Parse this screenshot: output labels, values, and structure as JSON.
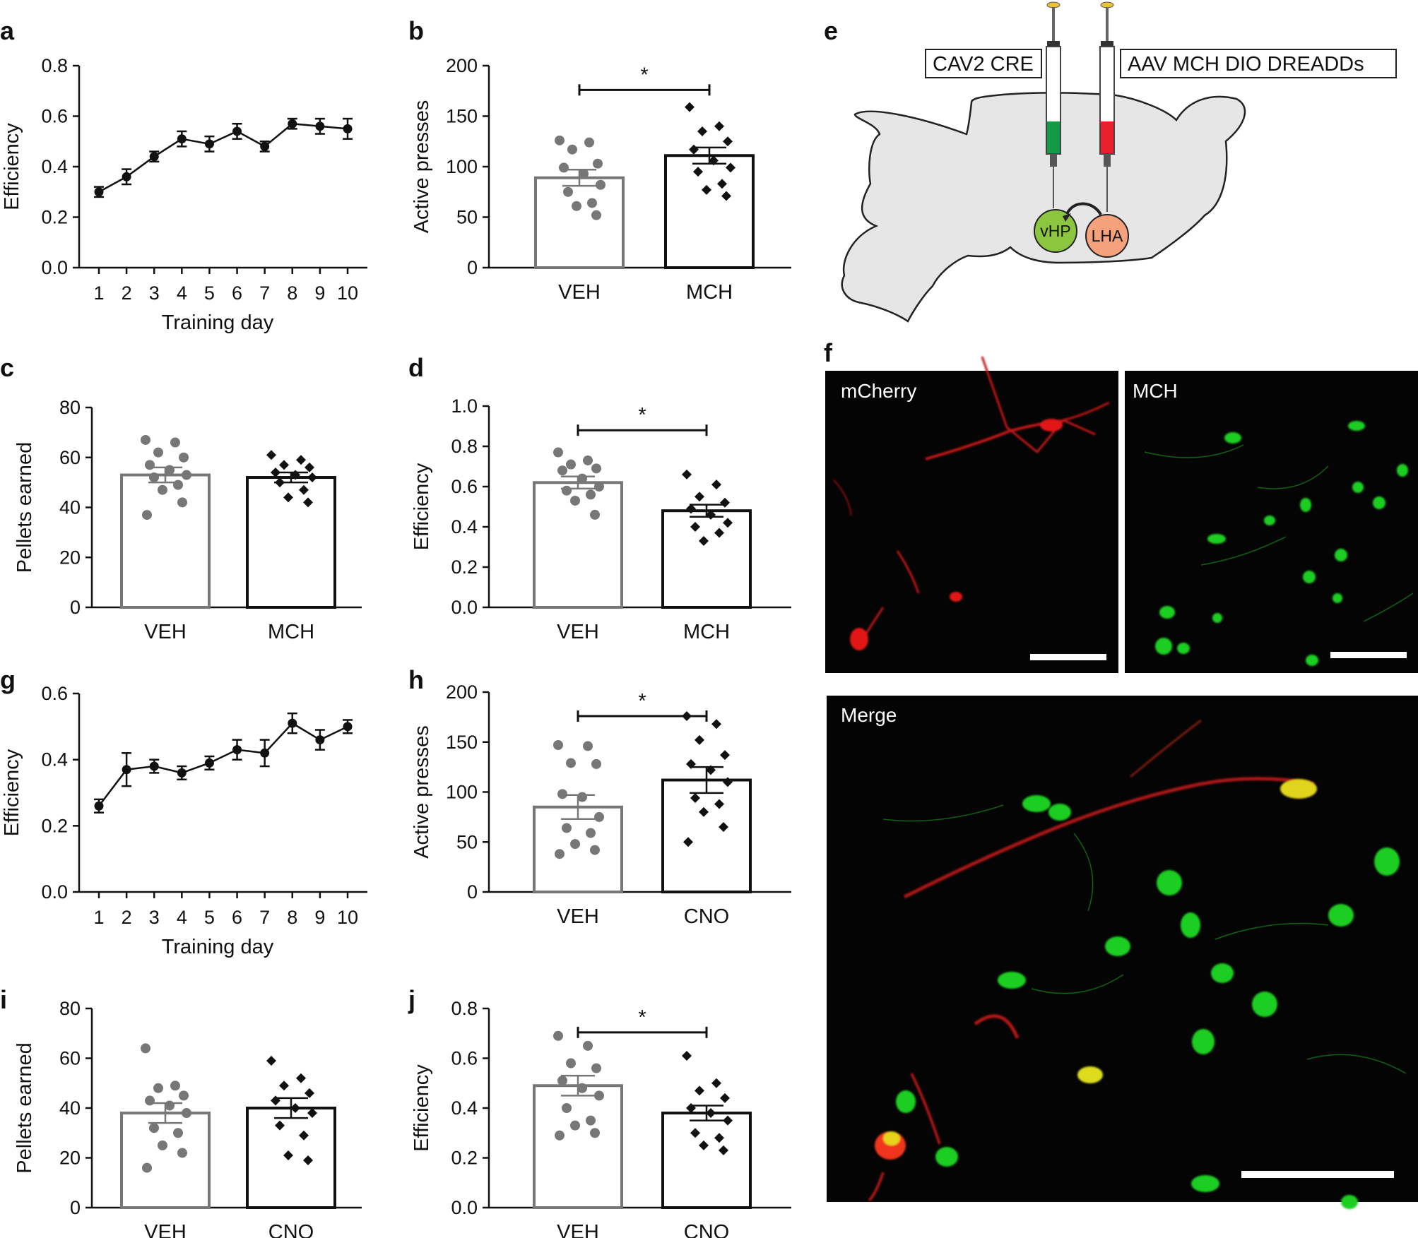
{
  "panel_labels": {
    "a": "a",
    "b": "b",
    "c": "c",
    "d": "d",
    "e": "e",
    "f": "f",
    "g": "g",
    "h": "h",
    "i": "i",
    "j": "j"
  },
  "colors": {
    "veh": "#777777",
    "drug": "#111111",
    "line": "#111111",
    "green_tissue": "#1fce22",
    "red_tissue": "#e21414",
    "brain_fill": "#e6e6e6",
    "vhp": "#8cc63f",
    "lha": "#f4a17c",
    "syringe_green": "#139a48",
    "syringe_red": "#e8202b"
  },
  "chart_data": [
    {
      "id": "a",
      "type": "line",
      "title": "",
      "xlabel": "Training day",
      "ylabel": "Efficiency",
      "x": [
        1,
        2,
        3,
        4,
        5,
        6,
        7,
        8,
        9,
        10
      ],
      "values": [
        0.3,
        0.36,
        0.44,
        0.51,
        0.49,
        0.54,
        0.48,
        0.57,
        0.56,
        0.55
      ],
      "errors": [
        0.02,
        0.03,
        0.02,
        0.03,
        0.03,
        0.03,
        0.02,
        0.02,
        0.03,
        0.04
      ],
      "ylim": [
        0,
        0.8
      ],
      "yticks": [
        "0.0",
        "0.2",
        "0.4",
        "0.6",
        "0.8"
      ],
      "xticks": [
        "1",
        "2",
        "3",
        "4",
        "5",
        "6",
        "7",
        "8",
        "9",
        "10"
      ]
    },
    {
      "id": "b",
      "type": "bar",
      "title": "",
      "ylabel": "Active presses",
      "categories": [
        "VEH",
        "MCH"
      ],
      "values": [
        89,
        111
      ],
      "errors": [
        8,
        8
      ],
      "ylim": [
        0,
        200
      ],
      "yticks": [
        "0",
        "50",
        "100",
        "150",
        "200"
      ],
      "significance": "*",
      "points": [
        [
          126,
          124,
          117,
          103,
          99,
          93,
          82,
          75,
          64,
          61,
          52
        ],
        [
          159,
          140,
          135,
          125,
          117,
          106,
          99,
          95,
          83,
          77,
          71
        ]
      ]
    },
    {
      "id": "c",
      "type": "bar",
      "title": "",
      "ylabel": "Pellets earned",
      "categories": [
        "VEH",
        "MCH"
      ],
      "values": [
        53,
        52
      ],
      "errors": [
        3,
        2
      ],
      "ylim": [
        0,
        80
      ],
      "yticks": [
        "0",
        "20",
        "40",
        "60",
        "80"
      ],
      "significance": "",
      "points": [
        [
          67,
          66,
          62,
          60,
          57,
          55,
          53,
          52,
          49,
          47,
          42,
          37
        ],
        [
          61,
          59,
          57,
          56,
          54,
          53,
          52,
          50,
          47,
          44,
          42
        ]
      ]
    },
    {
      "id": "d",
      "type": "bar",
      "title": "",
      "ylabel": "Efficiency",
      "categories": [
        "VEH",
        "MCH"
      ],
      "values": [
        0.62,
        0.48
      ],
      "errors": [
        0.03,
        0.03
      ],
      "ylim": [
        0,
        1.0
      ],
      "yticks": [
        "0.0",
        "0.2",
        "0.4",
        "0.6",
        "0.8",
        "1.0"
      ],
      "significance": "*",
      "points": [
        [
          0.77,
          0.73,
          0.71,
          0.69,
          0.68,
          0.64,
          0.6,
          0.58,
          0.56,
          0.53,
          0.46
        ],
        [
          0.66,
          0.61,
          0.55,
          0.52,
          0.49,
          0.46,
          0.42,
          0.4,
          0.37,
          0.33
        ]
      ]
    },
    {
      "id": "g",
      "type": "line",
      "title": "",
      "xlabel": "Training day",
      "ylabel": "Efficiency",
      "x": [
        1,
        2,
        3,
        4,
        5,
        6,
        7,
        8,
        9,
        10
      ],
      "values": [
        0.26,
        0.37,
        0.38,
        0.36,
        0.39,
        0.43,
        0.42,
        0.51,
        0.46,
        0.5
      ],
      "errors": [
        0.02,
        0.05,
        0.02,
        0.02,
        0.02,
        0.03,
        0.04,
        0.03,
        0.03,
        0.02
      ],
      "ylim": [
        0,
        0.6
      ],
      "yticks": [
        "0.0",
        "0.2",
        "0.4",
        "0.6"
      ],
      "xticks": [
        "1",
        "2",
        "3",
        "4",
        "5",
        "6",
        "7",
        "8",
        "9",
        "10"
      ]
    },
    {
      "id": "h",
      "type": "bar",
      "title": "",
      "ylabel": "Active presses",
      "categories": [
        "VEH",
        "CNO"
      ],
      "values": [
        85,
        112
      ],
      "errors": [
        12,
        13
      ],
      "ylim": [
        0,
        200
      ],
      "yticks": [
        "0",
        "50",
        "100",
        "150",
        "200"
      ],
      "significance": "*",
      "points": [
        [
          147,
          146,
          129,
          128,
          98,
          95,
          75,
          64,
          59,
          48,
          42,
          38
        ],
        [
          176,
          168,
          152,
          137,
          128,
          122,
          110,
          94,
          88,
          80,
          65,
          50
        ]
      ]
    },
    {
      "id": "i",
      "type": "bar",
      "title": "",
      "ylabel": "Pellets earned",
      "categories": [
        "VEH",
        "CNO"
      ],
      "values": [
        38,
        40
      ],
      "errors": [
        4,
        4
      ],
      "ylim": [
        0,
        80
      ],
      "yticks": [
        "0",
        "20",
        "40",
        "60",
        "80"
      ],
      "significance": "",
      "points": [
        [
          64,
          49,
          48,
          45,
          43,
          41,
          38,
          32,
          30,
          25,
          22,
          16
        ],
        [
          59,
          52,
          49,
          46,
          43,
          40,
          38,
          33,
          29,
          21,
          19
        ]
      ]
    },
    {
      "id": "j",
      "type": "bar",
      "title": "",
      "ylabel": "Efficiency",
      "categories": [
        "VEH",
        "CNO"
      ],
      "values": [
        0.49,
        0.38
      ],
      "errors": [
        0.04,
        0.03
      ],
      "ylim": [
        0,
        0.8
      ],
      "yticks": [
        "0.0",
        "0.2",
        "0.4",
        "0.6",
        "0.8"
      ],
      "significance": "*",
      "points": [
        [
          0.69,
          0.65,
          0.58,
          0.56,
          0.51,
          0.48,
          0.45,
          0.4,
          0.35,
          0.33,
          0.3,
          0.29
        ],
        [
          0.61,
          0.5,
          0.47,
          0.44,
          0.4,
          0.38,
          0.35,
          0.3,
          0.28,
          0.25,
          0.23
        ]
      ]
    }
  ],
  "diagram_e": {
    "box_left": "CAV2 CRE",
    "box_right": "AAV  MCH  DIO  DREADDs",
    "circle_left": "vHP",
    "circle_right": "LHA"
  },
  "micrographs": {
    "top_left": "mCherry",
    "top_right": "MCH",
    "bottom": "Merge"
  }
}
